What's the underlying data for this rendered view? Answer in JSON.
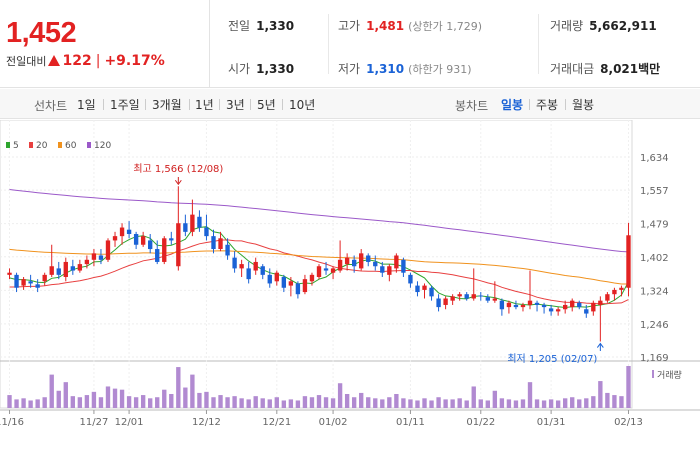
{
  "quote": {
    "price": "1,452",
    "change_label": "전일대비",
    "change": "122",
    "change_pct": "+9.17%",
    "rows": [
      {
        "label": "전일",
        "value": "1,330",
        "cls": ""
      },
      {
        "label": "고가",
        "value": "1,481",
        "cls": "up",
        "limit": "(상한가 1,729)"
      },
      {
        "label": "거래량",
        "value": "5,662,911",
        "cls": ""
      },
      {
        "label": "시가",
        "value": "1,330",
        "cls": ""
      },
      {
        "label": "저가",
        "value": "1,310",
        "cls": "dn",
        "limit": "(하한가 931)"
      },
      {
        "label": "거래대금",
        "value": "8,021",
        "cls": "",
        "unit": "백만"
      }
    ],
    "colors": {
      "up": "#e22222",
      "down": "#1a62d6"
    }
  },
  "toolbar": {
    "line_title": "선차트",
    "line_items": [
      "1일",
      "1주일",
      "3개월",
      "1년",
      "3년",
      "5년",
      "10년"
    ],
    "candle_title": "봉차트",
    "candle_items": [
      "일봉",
      "주봉",
      "월봉"
    ],
    "active_candle": "일봉"
  },
  "chart_data": {
    "type": "candlestick",
    "legend": [
      {
        "name": "5",
        "color": "#2ea52e"
      },
      {
        "name": "20",
        "color": "#e84040"
      },
      {
        "name": "60",
        "color": "#f0921e"
      },
      {
        "name": "120",
        "color": "#9b59c9"
      }
    ],
    "y_ticks": [
      "1,634",
      "1,557",
      "1,479",
      "1,402",
      "1,324",
      "1,246",
      "1,169"
    ],
    "y_tick_values": [
      1634,
      1557,
      1479,
      1402,
      1324,
      1246,
      1169
    ],
    "ylim": [
      1169,
      1634
    ],
    "x_ticks": [
      "11/16",
      "11/27",
      "12/01",
      "12/12",
      "12/21",
      "01/02",
      "01/11",
      "01/22",
      "01/31",
      "02/13"
    ],
    "x_tick_index": [
      0,
      12,
      17,
      28,
      38,
      46,
      57,
      67,
      77,
      88
    ],
    "volume_label": "거래량",
    "annotations": [
      {
        "text": "최고 1,566 (12/08)",
        "index": 24,
        "value": 1566,
        "color": "#d02020"
      },
      {
        "text": "최저 1,205 (02/07)",
        "index": 84,
        "value": 1205,
        "color": "#1a62d6"
      }
    ],
    "candles": [
      [
        1360,
        1375,
        1350,
        1365
      ],
      [
        1360,
        1365,
        1320,
        1330
      ],
      [
        1335,
        1355,
        1325,
        1350
      ],
      [
        1345,
        1360,
        1330,
        1340
      ],
      [
        1338,
        1350,
        1320,
        1330
      ],
      [
        1345,
        1365,
        1335,
        1360
      ],
      [
        1360,
        1430,
        1355,
        1380
      ],
      [
        1375,
        1390,
        1350,
        1360
      ],
      [
        1355,
        1400,
        1345,
        1390
      ],
      [
        1380,
        1395,
        1360,
        1370
      ],
      [
        1370,
        1395,
        1365,
        1385
      ],
      [
        1385,
        1405,
        1375,
        1395
      ],
      [
        1395,
        1420,
        1380,
        1410
      ],
      [
        1405,
        1420,
        1385,
        1395
      ],
      [
        1395,
        1445,
        1390,
        1440
      ],
      [
        1440,
        1460,
        1425,
        1450
      ],
      [
        1450,
        1480,
        1430,
        1470
      ],
      [
        1465,
        1485,
        1445,
        1455
      ],
      [
        1455,
        1460,
        1420,
        1430
      ],
      [
        1430,
        1460,
        1425,
        1450
      ],
      [
        1440,
        1455,
        1410,
        1420
      ],
      [
        1420,
        1440,
        1385,
        1390
      ],
      [
        1390,
        1450,
        1385,
        1445
      ],
      [
        1445,
        1460,
        1430,
        1440
      ],
      [
        1380,
        1566,
        1370,
        1480
      ],
      [
        1480,
        1500,
        1450,
        1460
      ],
      [
        1460,
        1535,
        1450,
        1500
      ],
      [
        1495,
        1510,
        1460,
        1470
      ],
      [
        1470,
        1500,
        1440,
        1450
      ],
      [
        1450,
        1465,
        1410,
        1420
      ],
      [
        1420,
        1460,
        1415,
        1445
      ],
      [
        1430,
        1445,
        1395,
        1405
      ],
      [
        1400,
        1415,
        1365,
        1375
      ],
      [
        1375,
        1395,
        1355,
        1385
      ],
      [
        1375,
        1390,
        1340,
        1350
      ],
      [
        1370,
        1400,
        1360,
        1390
      ],
      [
        1380,
        1385,
        1350,
        1360
      ],
      [
        1360,
        1375,
        1330,
        1340
      ],
      [
        1345,
        1370,
        1335,
        1365
      ],
      [
        1355,
        1360,
        1320,
        1330
      ],
      [
        1335,
        1355,
        1310,
        1345
      ],
      [
        1340,
        1345,
        1305,
        1315
      ],
      [
        1320,
        1360,
        1315,
        1350
      ],
      [
        1345,
        1365,
        1335,
        1360
      ],
      [
        1355,
        1385,
        1350,
        1380
      ],
      [
        1375,
        1390,
        1360,
        1370
      ],
      [
        1365,
        1380,
        1350,
        1375
      ],
      [
        1370,
        1440,
        1365,
        1395
      ],
      [
        1385,
        1410,
        1370,
        1400
      ],
      [
        1395,
        1405,
        1365,
        1380
      ],
      [
        1375,
        1420,
        1370,
        1410
      ],
      [
        1405,
        1410,
        1380,
        1390
      ],
      [
        1390,
        1405,
        1370,
        1380
      ],
      [
        1380,
        1390,
        1355,
        1365
      ],
      [
        1360,
        1385,
        1345,
        1380
      ],
      [
        1375,
        1410,
        1365,
        1405
      ],
      [
        1395,
        1400,
        1355,
        1365
      ],
      [
        1360,
        1365,
        1330,
        1340
      ],
      [
        1335,
        1345,
        1310,
        1320
      ],
      [
        1325,
        1340,
        1305,
        1335
      ],
      [
        1330,
        1335,
        1300,
        1310
      ],
      [
        1305,
        1315,
        1275,
        1285
      ],
      [
        1290,
        1310,
        1280,
        1305
      ],
      [
        1300,
        1315,
        1290,
        1310
      ],
      [
        1310,
        1320,
        1300,
        1315
      ],
      [
        1315,
        1320,
        1300,
        1305
      ],
      [
        1305,
        1375,
        1300,
        1315
      ],
      [
        1312,
        1320,
        1300,
        1310
      ],
      [
        1308,
        1315,
        1295,
        1300
      ],
      [
        1300,
        1345,
        1295,
        1305
      ],
      [
        1300,
        1305,
        1265,
        1280
      ],
      [
        1285,
        1300,
        1270,
        1295
      ],
      [
        1290,
        1300,
        1280,
        1285
      ],
      [
        1285,
        1295,
        1275,
        1290
      ],
      [
        1290,
        1370,
        1280,
        1300
      ],
      [
        1295,
        1300,
        1275,
        1290
      ],
      [
        1290,
        1295,
        1270,
        1285
      ],
      [
        1282,
        1290,
        1265,
        1275
      ],
      [
        1275,
        1285,
        1265,
        1280
      ],
      [
        1280,
        1300,
        1270,
        1290
      ],
      [
        1285,
        1305,
        1275,
        1300
      ],
      [
        1295,
        1300,
        1280,
        1285
      ],
      [
        1280,
        1290,
        1260,
        1270
      ],
      [
        1275,
        1300,
        1265,
        1295
      ],
      [
        1290,
        1310,
        1205,
        1300
      ],
      [
        1300,
        1320,
        1295,
        1315
      ],
      [
        1315,
        1330,
        1300,
        1325
      ],
      [
        1325,
        1335,
        1310,
        1330
      ],
      [
        1330,
        1481,
        1310,
        1452
      ]
    ],
    "volume": [
      1.2,
      0.8,
      0.9,
      0.7,
      0.8,
      1.0,
      3.1,
      1.6,
      2.4,
      1.1,
      1.0,
      1.2,
      1.5,
      1.0,
      2.0,
      1.8,
      1.7,
      1.1,
      1.0,
      1.2,
      0.9,
      1.0,
      1.7,
      1.3,
      3.8,
      1.9,
      3.1,
      1.4,
      1.5,
      1.0,
      1.2,
      1.0,
      1.1,
      0.9,
      0.8,
      1.1,
      0.9,
      0.8,
      1.0,
      0.7,
      0.8,
      0.7,
      1.1,
      1.0,
      1.2,
      1.0,
      0.9,
      2.3,
      1.3,
      1.0,
      1.4,
      1.0,
      0.9,
      0.8,
      1.0,
      1.3,
      0.9,
      0.8,
      0.7,
      0.9,
      0.7,
      1.0,
      0.8,
      0.8,
      0.9,
      0.7,
      2.0,
      0.8,
      0.7,
      1.6,
      0.9,
      0.8,
      0.7,
      0.8,
      2.4,
      0.8,
      0.7,
      0.8,
      0.7,
      0.9,
      1.0,
      0.8,
      0.9,
      1.1,
      2.5,
      1.4,
      1.2,
      1.1,
      3.9
    ]
  }
}
